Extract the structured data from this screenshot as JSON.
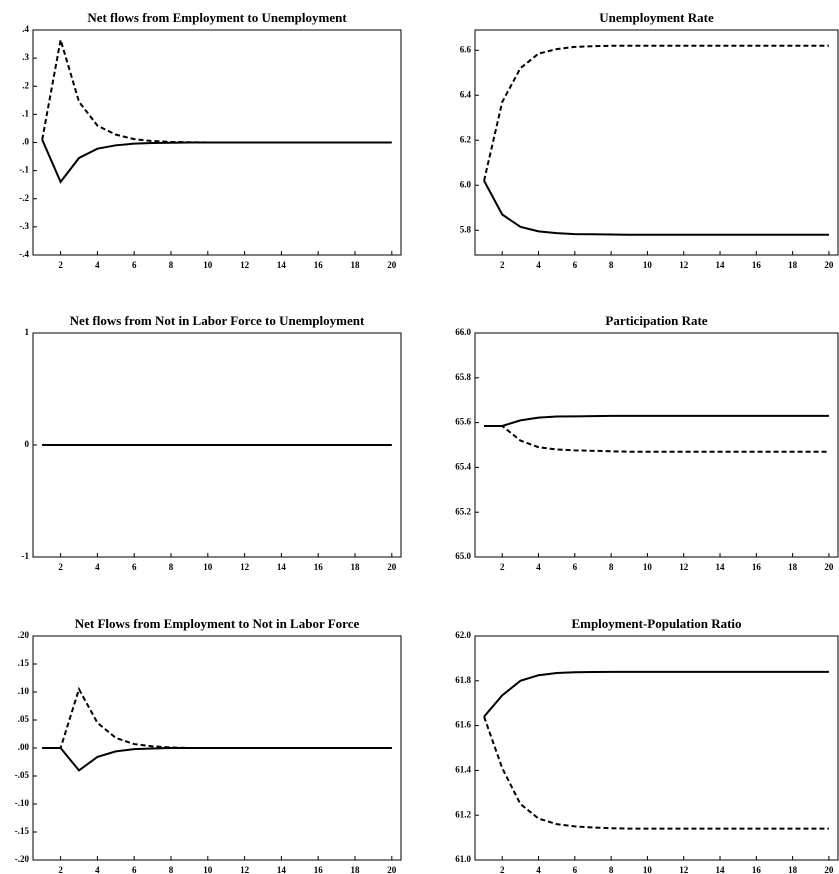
{
  "chart_data": [
    {
      "type": "line",
      "title": "Net flows from Employment to Unemployment",
      "grid": false,
      "x": [
        1,
        2,
        3,
        4,
        5,
        6,
        7,
        8,
        9,
        10,
        11,
        12,
        13,
        14,
        15,
        16,
        17,
        18,
        19,
        20
      ],
      "xlim": [
        0.5,
        20.5
      ],
      "xticks": [
        2,
        4,
        6,
        8,
        10,
        12,
        14,
        16,
        18,
        20
      ],
      "ylim": [
        -0.4,
        0.4
      ],
      "yticks": [
        {
          "value": -0.4,
          "label": "-.4"
        },
        {
          "value": -0.3,
          "label": "-.3"
        },
        {
          "value": -0.2,
          "label": "-.2"
        },
        {
          "value": -0.1,
          "label": "-.1"
        },
        {
          "value": 0,
          "label": ".0"
        },
        {
          "value": 0.1,
          "label": ".1"
        },
        {
          "value": 0.2,
          "label": ".2"
        },
        {
          "value": 0.3,
          "label": ".3"
        },
        {
          "value": 0.4,
          "label": ".4"
        }
      ],
      "series": [
        {
          "color": "#000000",
          "style": "solid",
          "values": [
            0.01,
            -0.14,
            -0.055,
            -0.022,
            -0.01,
            -0.004,
            -0.002,
            -0.001,
            0,
            0,
            0,
            0,
            0,
            0,
            0,
            0,
            0,
            0,
            0,
            0
          ]
        },
        {
          "color": "#000000",
          "style": "dashed",
          "values": [
            0.01,
            0.365,
            0.145,
            0.06,
            0.028,
            0.012,
            0.005,
            0.002,
            0.001,
            0,
            0,
            0,
            0,
            0,
            0,
            0,
            0,
            0,
            0,
            0
          ]
        }
      ]
    },
    {
      "type": "line",
      "title": "Unemployment Rate",
      "grid": false,
      "x": [
        1,
        2,
        3,
        4,
        5,
        6,
        7,
        8,
        9,
        10,
        11,
        12,
        13,
        14,
        15,
        16,
        17,
        18,
        19,
        20
      ],
      "xlim": [
        0.5,
        20.5
      ],
      "xticks": [
        2,
        4,
        6,
        8,
        10,
        12,
        14,
        16,
        18,
        20
      ],
      "ylim": [
        5.69,
        6.69
      ],
      "yticks": [
        5.8,
        {
          "value": 6.0,
          "label": "6.0"
        },
        6.2,
        6.4,
        6.6
      ],
      "series": [
        {
          "color": "#000000",
          "style": "solid",
          "values": [
            6.02,
            5.87,
            5.815,
            5.795,
            5.787,
            5.783,
            5.782,
            5.781,
            5.78,
            5.78,
            5.78,
            5.78,
            5.78,
            5.78,
            5.78,
            5.78,
            5.78,
            5.78,
            5.78,
            5.78
          ]
        },
        {
          "color": "#000000",
          "style": "dashed",
          "values": [
            6.02,
            6.37,
            6.52,
            6.585,
            6.605,
            6.615,
            6.618,
            6.62,
            6.62,
            6.62,
            6.62,
            6.62,
            6.62,
            6.62,
            6.62,
            6.62,
            6.62,
            6.62,
            6.62,
            6.62
          ]
        }
      ]
    },
    {
      "type": "line",
      "title": "Net flows from Not in Labor Force to Unemployment",
      "grid": false,
      "x": [
        1,
        2,
        3,
        4,
        5,
        6,
        7,
        8,
        9,
        10,
        11,
        12,
        13,
        14,
        15,
        16,
        17,
        18,
        19,
        20
      ],
      "xlim": [
        0.5,
        20.5
      ],
      "xticks": [
        2,
        4,
        6,
        8,
        10,
        12,
        14,
        16,
        18,
        20
      ],
      "ylim": [
        -1,
        1
      ],
      "yticks": [
        -1,
        0,
        1
      ],
      "series": [
        {
          "color": "#000000",
          "style": "solid",
          "values": [
            0,
            0,
            0,
            0,
            0,
            0,
            0,
            0,
            0,
            0,
            0,
            0,
            0,
            0,
            0,
            0,
            0,
            0,
            0,
            0
          ]
        },
        {
          "color": "#000000",
          "style": "dashed",
          "values": [
            0,
            0,
            0,
            0,
            0,
            0,
            0,
            0,
            0,
            0,
            0,
            0,
            0,
            0,
            0,
            0,
            0,
            0,
            0,
            0
          ]
        }
      ]
    },
    {
      "type": "line",
      "title": "Participation Rate",
      "grid": false,
      "x": [
        1,
        2,
        3,
        4,
        5,
        6,
        7,
        8,
        9,
        10,
        11,
        12,
        13,
        14,
        15,
        16,
        17,
        18,
        19,
        20
      ],
      "xlim": [
        0.5,
        20.5
      ],
      "xticks": [
        2,
        4,
        6,
        8,
        10,
        12,
        14,
        16,
        18,
        20
      ],
      "ylim": [
        65,
        66
      ],
      "yticks": [
        {
          "value": 65,
          "label": "65.0"
        },
        65.2,
        65.4,
        65.6,
        65.8,
        {
          "value": 66,
          "label": "66.0"
        }
      ],
      "series": [
        {
          "color": "#000000",
          "style": "solid",
          "values": [
            65.585,
            65.585,
            65.61,
            65.622,
            65.627,
            65.628,
            65.629,
            65.63,
            65.63,
            65.63,
            65.63,
            65.63,
            65.63,
            65.63,
            65.63,
            65.63,
            65.63,
            65.63,
            65.63,
            65.63
          ]
        },
        {
          "color": "#000000",
          "style": "dashed",
          "values": [
            65.585,
            65.585,
            65.52,
            65.49,
            65.48,
            65.476,
            65.474,
            65.472,
            65.47,
            65.47,
            65.47,
            65.47,
            65.47,
            65.47,
            65.47,
            65.47,
            65.47,
            65.47,
            65.47,
            65.47
          ]
        }
      ]
    },
    {
      "type": "line",
      "title": "Net Flows from Employment to Not in Labor Force",
      "grid": false,
      "x": [
        1,
        2,
        3,
        4,
        5,
        6,
        7,
        8,
        9,
        10,
        11,
        12,
        13,
        14,
        15,
        16,
        17,
        18,
        19,
        20
      ],
      "xlim": [
        0.5,
        20.5
      ],
      "xticks": [
        2,
        4,
        6,
        8,
        10,
        12,
        14,
        16,
        18,
        20
      ],
      "ylim": [
        -0.2,
        0.2
      ],
      "yticks": [
        {
          "value": -0.2,
          "label": "-.20"
        },
        {
          "value": -0.15,
          "label": "-.15"
        },
        {
          "value": -0.1,
          "label": "-.10"
        },
        {
          "value": -0.05,
          "label": "-.05"
        },
        {
          "value": 0,
          "label": ".00"
        },
        {
          "value": 0.05,
          "label": ".05"
        },
        {
          "value": 0.1,
          "label": ".10"
        },
        {
          "value": 0.15,
          "label": ".15"
        },
        {
          "value": 0.2,
          "label": ".20"
        }
      ],
      "series": [
        {
          "color": "#000000",
          "style": "solid",
          "values": [
            0,
            0,
            -0.04,
            -0.016,
            -0.006,
            -0.002,
            -0.001,
            0,
            0,
            0,
            0,
            0,
            0,
            0,
            0,
            0,
            0,
            0,
            0,
            0
          ]
        },
        {
          "color": "#000000",
          "style": "dashed",
          "values": [
            0,
            0,
            0.105,
            0.045,
            0.018,
            0.007,
            0.003,
            0.001,
            0,
            0,
            0,
            0,
            0,
            0,
            0,
            0,
            0,
            0,
            0,
            0
          ]
        }
      ]
    },
    {
      "type": "line",
      "title": "Employment-Population Ratio",
      "grid": false,
      "x": [
        1,
        2,
        3,
        4,
        5,
        6,
        7,
        8,
        9,
        10,
        11,
        12,
        13,
        14,
        15,
        16,
        17,
        18,
        19,
        20
      ],
      "xlim": [
        0.5,
        20.5
      ],
      "xticks": [
        2,
        4,
        6,
        8,
        10,
        12,
        14,
        16,
        18,
        20
      ],
      "ylim": [
        61,
        62
      ],
      "yticks": [
        {
          "value": 61,
          "label": "61.0"
        },
        61.2,
        61.4,
        61.6,
        61.8,
        {
          "value": 62,
          "label": "62.0"
        }
      ],
      "series": [
        {
          "color": "#000000",
          "style": "solid",
          "values": [
            61.64,
            61.735,
            61.8,
            61.825,
            61.835,
            61.838,
            61.839,
            61.84,
            61.84,
            61.84,
            61.84,
            61.84,
            61.84,
            61.84,
            61.84,
            61.84,
            61.84,
            61.84,
            61.84,
            61.84
          ]
        },
        {
          "color": "#000000",
          "style": "dashed",
          "values": [
            61.64,
            61.41,
            61.25,
            61.185,
            61.16,
            61.15,
            61.145,
            61.142,
            61.14,
            61.14,
            61.14,
            61.14,
            61.14,
            61.14,
            61.14,
            61.14,
            61.14,
            61.14,
            61.14,
            61.14
          ]
        }
      ]
    }
  ]
}
